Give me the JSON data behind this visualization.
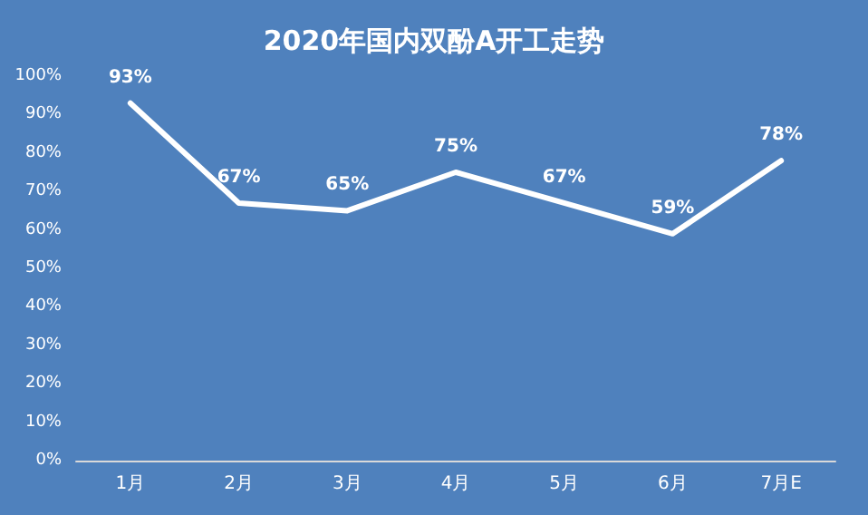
{
  "chart_data": {
    "type": "line",
    "title": "2020年国内双酚A开工走势",
    "categories": [
      "1月",
      "2月",
      "3月",
      "4月",
      "5月",
      "6月",
      "7月E"
    ],
    "series": [
      {
        "color": "#ffffff",
        "values": [
          93,
          67,
          65,
          75,
          67,
          59,
          78
        ],
        "value_labels": [
          "93%",
          "67%",
          "65%",
          "75%",
          "67%",
          "59%",
          "78%"
        ]
      }
    ],
    "ylim": [
      0,
      100
    ],
    "yticks": [
      {
        "value": 0,
        "label": "0%"
      },
      {
        "value": 10,
        "label": "10%"
      },
      {
        "value": 20,
        "label": "20%"
      },
      {
        "value": 30,
        "label": "30%"
      },
      {
        "value": 40,
        "label": "40%"
      },
      {
        "value": 50,
        "label": "50%"
      },
      {
        "value": 60,
        "label": "60%"
      },
      {
        "value": 70,
        "label": "70%"
      },
      {
        "value": 80,
        "label": "80%"
      },
      {
        "value": 90,
        "label": "90%"
      },
      {
        "value": 100,
        "label": "100%"
      }
    ],
    "grid": false,
    "marker": "none",
    "line_style": "solid"
  }
}
